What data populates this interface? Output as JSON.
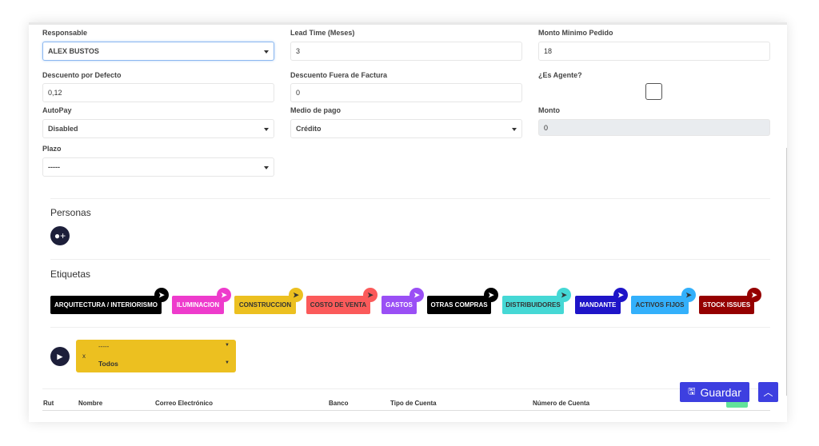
{
  "form": {
    "responsable": {
      "label": "Responsable",
      "value": "ALEX BUSTOS"
    },
    "lead_time": {
      "label": "Lead Time (Meses)",
      "value": "3"
    },
    "monto_minimo": {
      "label": "Monto Minimo Pedido",
      "value": "18"
    },
    "descuento_defecto": {
      "label": "Descuento por Defecto",
      "value": "0,12"
    },
    "descuento_fuera": {
      "label": "Descuento Fuera de Factura",
      "value": "0"
    },
    "es_agente": {
      "label": "¿Es Agente?",
      "checked": false
    },
    "autopay": {
      "label": "AutoPay",
      "value": "Disabled"
    },
    "medio_pago": {
      "label": "Medio de pago",
      "value": "Crédito"
    },
    "monto": {
      "label": "Monto",
      "value": "0"
    },
    "plazo": {
      "label": "Plazo",
      "value": "-----"
    }
  },
  "personas": {
    "title": "Personas",
    "icon": "add-group-icon"
  },
  "etiquetas": {
    "title": "Etiquetas",
    "tags": [
      {
        "label": "ARQUITECTURA / INTERIORISMO",
        "color": "#000000",
        "text": "#ffffff"
      },
      {
        "label": "ILUMINACION",
        "color": "#ee3bcc",
        "text": "#ffffff"
      },
      {
        "label": "CONSTRUCCION",
        "color": "#ecc020",
        "text": "#333333"
      },
      {
        "label": "COSTO DE VENTA",
        "color": "#fb5a5a",
        "text": "#333333"
      },
      {
        "label": "GASTOS",
        "color": "#9a4ff5",
        "text": "#ffffff"
      },
      {
        "label": "OTRAS COMPRAS",
        "color": "#000000",
        "text": "#ffffff"
      },
      {
        "label": "DISTRIBUIDORES",
        "color": "#45d8d5",
        "text": "#333333"
      },
      {
        "label": "MANDANTE",
        "color": "#1e14c8",
        "text": "#ffffff"
      },
      {
        "label": "ACTIVOS FIJOS",
        "color": "#33b0fb",
        "text": "#333333"
      },
      {
        "label": "STOCK ISSUES",
        "color": "#950000",
        "text": "#ffffff"
      }
    ]
  },
  "filter": {
    "remove": "x",
    "select1": "-----",
    "select2": "Todos",
    "color": "#ecc020"
  },
  "table": {
    "headers": [
      "Rut",
      "Nombre",
      "Correo Electrónico",
      "Banco",
      "Tipo de Cuenta",
      "Número de Cuenta"
    ]
  },
  "actions": {
    "save": "Guardar",
    "accent": "#3d3fe0"
  }
}
